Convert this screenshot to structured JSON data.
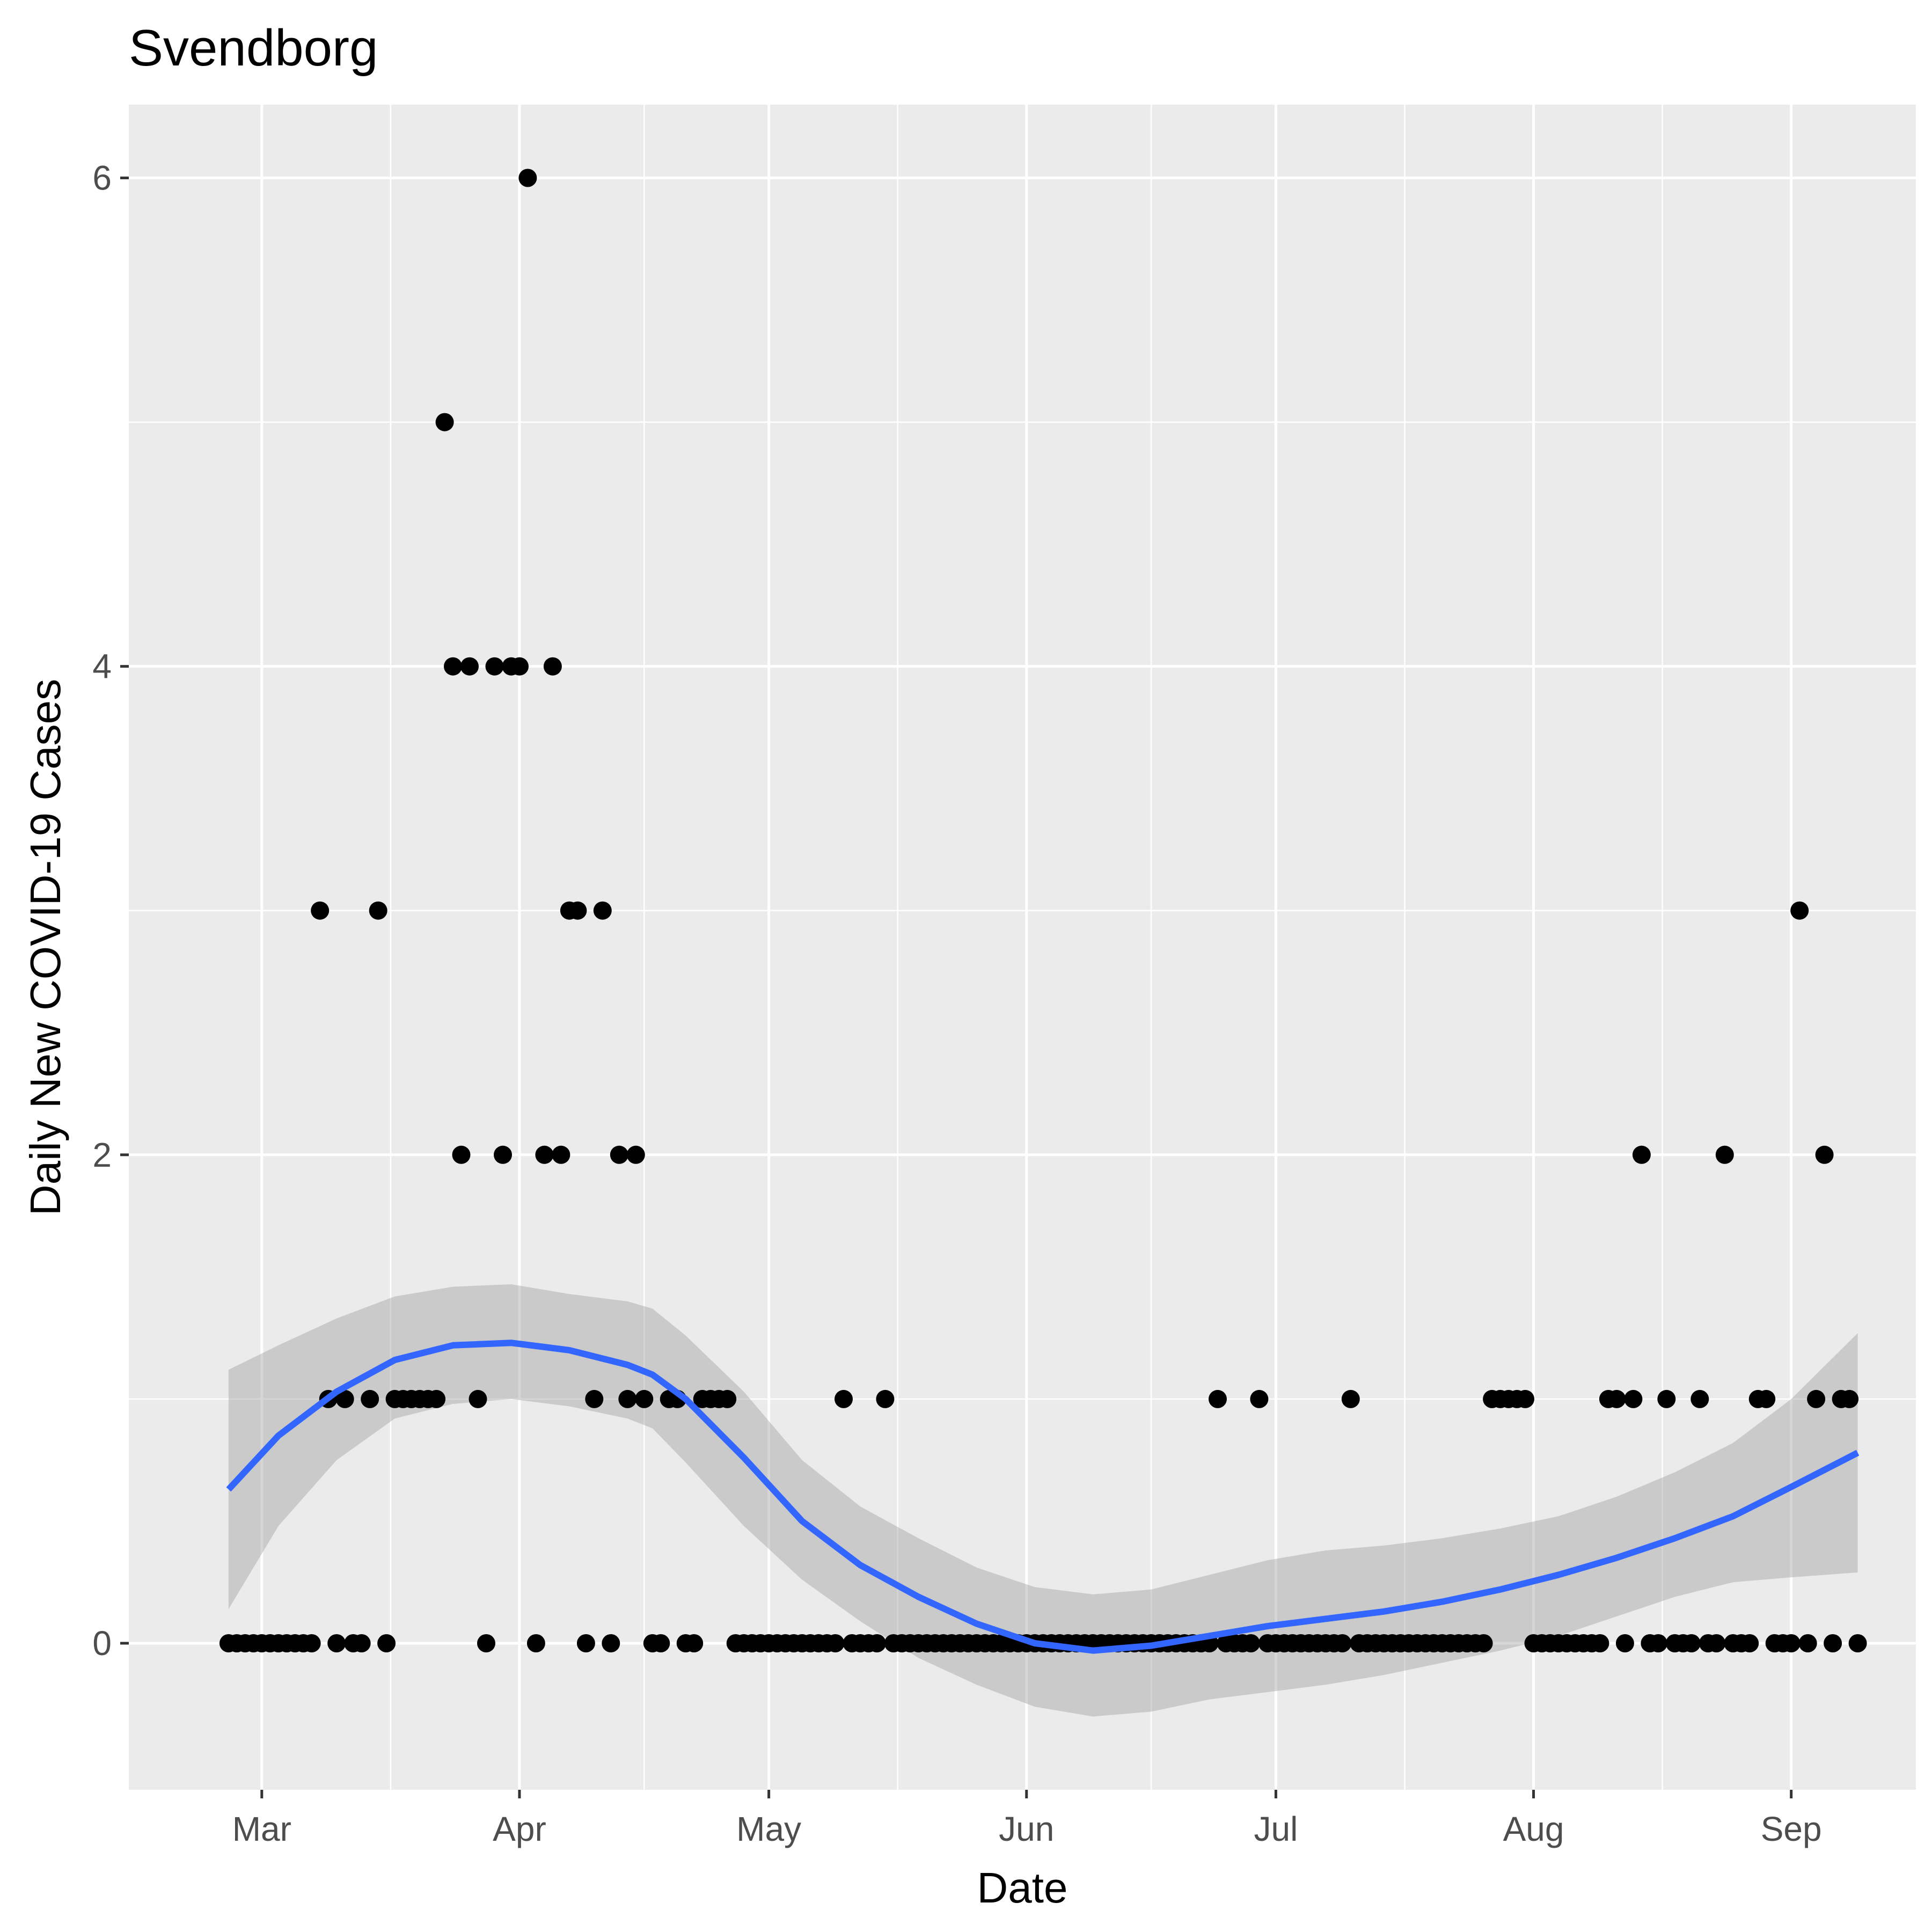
{
  "chart_data": {
    "type": "scatter",
    "title": "Svendborg",
    "xlabel": "Date",
    "ylabel": "Daily New COVID-19 Cases",
    "xlim": [
      "2020-02-14",
      "2020-09-16"
    ],
    "ylim": [
      -0.6,
      6.3
    ],
    "x_ticks": [
      {
        "date": "2020-03-01",
        "label": "Mar"
      },
      {
        "date": "2020-04-01",
        "label": "Apr"
      },
      {
        "date": "2020-05-01",
        "label": "May"
      },
      {
        "date": "2020-06-01",
        "label": "Jun"
      },
      {
        "date": "2020-07-01",
        "label": "Jul"
      },
      {
        "date": "2020-08-01",
        "label": "Aug"
      },
      {
        "date": "2020-09-01",
        "label": "Sep"
      }
    ],
    "y_ticks": [
      0,
      2,
      4,
      6
    ],
    "grid": true,
    "points": [
      [
        "2020-02-26",
        0
      ],
      [
        "2020-02-27",
        0
      ],
      [
        "2020-02-28",
        0
      ],
      [
        "2020-02-29",
        0
      ],
      [
        "2020-03-01",
        0
      ],
      [
        "2020-03-02",
        0
      ],
      [
        "2020-03-03",
        0
      ],
      [
        "2020-03-04",
        0
      ],
      [
        "2020-03-05",
        0
      ],
      [
        "2020-03-06",
        0
      ],
      [
        "2020-03-07",
        0
      ],
      [
        "2020-03-08",
        3
      ],
      [
        "2020-03-09",
        1
      ],
      [
        "2020-03-10",
        0
      ],
      [
        "2020-03-11",
        1
      ],
      [
        "2020-03-12",
        0
      ],
      [
        "2020-03-13",
        0
      ],
      [
        "2020-03-14",
        1
      ],
      [
        "2020-03-15",
        3
      ],
      [
        "2020-03-16",
        0
      ],
      [
        "2020-03-17",
        1
      ],
      [
        "2020-03-18",
        1
      ],
      [
        "2020-03-19",
        1
      ],
      [
        "2020-03-20",
        1
      ],
      [
        "2020-03-21",
        1
      ],
      [
        "2020-03-22",
        1
      ],
      [
        "2020-03-23",
        5
      ],
      [
        "2020-03-24",
        4
      ],
      [
        "2020-03-25",
        2
      ],
      [
        "2020-03-26",
        4
      ],
      [
        "2020-03-27",
        1
      ],
      [
        "2020-03-28",
        0
      ],
      [
        "2020-03-29",
        4
      ],
      [
        "2020-03-30",
        2
      ],
      [
        "2020-03-31",
        4
      ],
      [
        "2020-04-01",
        4
      ],
      [
        "2020-04-02",
        6
      ],
      [
        "2020-04-03",
        0
      ],
      [
        "2020-04-04",
        2
      ],
      [
        "2020-04-05",
        4
      ],
      [
        "2020-04-06",
        2
      ],
      [
        "2020-04-07",
        3
      ],
      [
        "2020-04-08",
        3
      ],
      [
        "2020-04-09",
        0
      ],
      [
        "2020-04-10",
        1
      ],
      [
        "2020-04-11",
        3
      ],
      [
        "2020-04-12",
        0
      ],
      [
        "2020-04-13",
        2
      ],
      [
        "2020-04-14",
        1
      ],
      [
        "2020-04-15",
        2
      ],
      [
        "2020-04-16",
        1
      ],
      [
        "2020-04-17",
        0
      ],
      [
        "2020-04-18",
        0
      ],
      [
        "2020-04-19",
        1
      ],
      [
        "2020-04-20",
        1
      ],
      [
        "2020-04-21",
        0
      ],
      [
        "2020-04-22",
        0
      ],
      [
        "2020-04-23",
        1
      ],
      [
        "2020-04-24",
        1
      ],
      [
        "2020-04-25",
        1
      ],
      [
        "2020-04-26",
        1
      ],
      [
        "2020-04-27",
        0
      ],
      [
        "2020-04-28",
        0
      ],
      [
        "2020-04-29",
        0
      ],
      [
        "2020-04-30",
        0
      ],
      [
        "2020-05-01",
        0
      ],
      [
        "2020-05-02",
        0
      ],
      [
        "2020-05-03",
        0
      ],
      [
        "2020-05-04",
        0
      ],
      [
        "2020-05-05",
        0
      ],
      [
        "2020-05-06",
        0
      ],
      [
        "2020-05-07",
        0
      ],
      [
        "2020-05-08",
        0
      ],
      [
        "2020-05-09",
        0
      ],
      [
        "2020-05-10",
        1
      ],
      [
        "2020-05-11",
        0
      ],
      [
        "2020-05-12",
        0
      ],
      [
        "2020-05-13",
        0
      ],
      [
        "2020-05-14",
        0
      ],
      [
        "2020-05-15",
        1
      ],
      [
        "2020-05-16",
        0
      ],
      [
        "2020-05-17",
        0
      ],
      [
        "2020-05-18",
        0
      ],
      [
        "2020-05-19",
        0
      ],
      [
        "2020-05-20",
        0
      ],
      [
        "2020-05-21",
        0
      ],
      [
        "2020-05-22",
        0
      ],
      [
        "2020-05-23",
        0
      ],
      [
        "2020-05-24",
        0
      ],
      [
        "2020-05-25",
        0
      ],
      [
        "2020-05-26",
        0
      ],
      [
        "2020-05-27",
        0
      ],
      [
        "2020-05-28",
        0
      ],
      [
        "2020-05-29",
        0
      ],
      [
        "2020-05-30",
        0
      ],
      [
        "2020-05-31",
        0
      ],
      [
        "2020-06-01",
        0
      ],
      [
        "2020-06-02",
        0
      ],
      [
        "2020-06-03",
        0
      ],
      [
        "2020-06-04",
        0
      ],
      [
        "2020-06-05",
        0
      ],
      [
        "2020-06-06",
        0
      ],
      [
        "2020-06-07",
        0
      ],
      [
        "2020-06-08",
        0
      ],
      [
        "2020-06-09",
        0
      ],
      [
        "2020-06-10",
        0
      ],
      [
        "2020-06-11",
        0
      ],
      [
        "2020-06-12",
        0
      ],
      [
        "2020-06-13",
        0
      ],
      [
        "2020-06-14",
        0
      ],
      [
        "2020-06-15",
        0
      ],
      [
        "2020-06-16",
        0
      ],
      [
        "2020-06-17",
        0
      ],
      [
        "2020-06-18",
        0
      ],
      [
        "2020-06-19",
        0
      ],
      [
        "2020-06-20",
        0
      ],
      [
        "2020-06-21",
        0
      ],
      [
        "2020-06-22",
        0
      ],
      [
        "2020-06-23",
        0
      ],
      [
        "2020-06-24",
        1
      ],
      [
        "2020-06-25",
        0
      ],
      [
        "2020-06-26",
        0
      ],
      [
        "2020-06-27",
        0
      ],
      [
        "2020-06-28",
        0
      ],
      [
        "2020-06-29",
        1
      ],
      [
        "2020-06-30",
        0
      ],
      [
        "2020-07-01",
        0
      ],
      [
        "2020-07-02",
        0
      ],
      [
        "2020-07-03",
        0
      ],
      [
        "2020-07-04",
        0
      ],
      [
        "2020-07-05",
        0
      ],
      [
        "2020-07-06",
        0
      ],
      [
        "2020-07-07",
        0
      ],
      [
        "2020-07-08",
        0
      ],
      [
        "2020-07-09",
        0
      ],
      [
        "2020-07-10",
        1
      ],
      [
        "2020-07-11",
        0
      ],
      [
        "2020-07-12",
        0
      ],
      [
        "2020-07-13",
        0
      ],
      [
        "2020-07-14",
        0
      ],
      [
        "2020-07-15",
        0
      ],
      [
        "2020-07-16",
        0
      ],
      [
        "2020-07-17",
        0
      ],
      [
        "2020-07-18",
        0
      ],
      [
        "2020-07-19",
        0
      ],
      [
        "2020-07-20",
        0
      ],
      [
        "2020-07-21",
        0
      ],
      [
        "2020-07-22",
        0
      ],
      [
        "2020-07-23",
        0
      ],
      [
        "2020-07-24",
        0
      ],
      [
        "2020-07-25",
        0
      ],
      [
        "2020-07-26",
        0
      ],
      [
        "2020-07-27",
        1
      ],
      [
        "2020-07-28",
        1
      ],
      [
        "2020-07-29",
        1
      ],
      [
        "2020-07-30",
        1
      ],
      [
        "2020-07-31",
        1
      ],
      [
        "2020-08-01",
        0
      ],
      [
        "2020-08-02",
        0
      ],
      [
        "2020-08-03",
        0
      ],
      [
        "2020-08-04",
        0
      ],
      [
        "2020-08-05",
        0
      ],
      [
        "2020-08-06",
        0
      ],
      [
        "2020-08-07",
        0
      ],
      [
        "2020-08-08",
        0
      ],
      [
        "2020-08-09",
        0
      ],
      [
        "2020-08-10",
        1
      ],
      [
        "2020-08-11",
        1
      ],
      [
        "2020-08-12",
        0
      ],
      [
        "2020-08-13",
        1
      ],
      [
        "2020-08-14",
        2
      ],
      [
        "2020-08-15",
        0
      ],
      [
        "2020-08-16",
        0
      ],
      [
        "2020-08-17",
        1
      ],
      [
        "2020-08-18",
        0
      ],
      [
        "2020-08-19",
        0
      ],
      [
        "2020-08-20",
        0
      ],
      [
        "2020-08-21",
        1
      ],
      [
        "2020-08-22",
        0
      ],
      [
        "2020-08-23",
        0
      ],
      [
        "2020-08-24",
        2
      ],
      [
        "2020-08-25",
        0
      ],
      [
        "2020-08-26",
        0
      ],
      [
        "2020-08-27",
        0
      ],
      [
        "2020-08-28",
        1
      ],
      [
        "2020-08-29",
        1
      ],
      [
        "2020-08-30",
        0
      ],
      [
        "2020-08-31",
        0
      ],
      [
        "2020-09-01",
        0
      ],
      [
        "2020-09-02",
        3
      ],
      [
        "2020-09-03",
        0
      ],
      [
        "2020-09-04",
        1
      ],
      [
        "2020-09-05",
        2
      ],
      [
        "2020-09-06",
        0
      ],
      [
        "2020-09-07",
        1
      ],
      [
        "2020-09-08",
        1
      ],
      [
        "2020-09-09",
        0
      ]
    ],
    "smooth": {
      "color": "#3366ff",
      "band_color": "#999999",
      "curve": [
        [
          "2020-02-26",
          0.63,
          0.14,
          1.12
        ],
        [
          "2020-03-03",
          0.85,
          0.48,
          1.22
        ],
        [
          "2020-03-10",
          1.03,
          0.75,
          1.33
        ],
        [
          "2020-03-17",
          1.16,
          0.92,
          1.42
        ],
        [
          "2020-03-24",
          1.22,
          0.98,
          1.46
        ],
        [
          "2020-03-31",
          1.23,
          1.0,
          1.47
        ],
        [
          "2020-04-07",
          1.2,
          0.97,
          1.43
        ],
        [
          "2020-04-14",
          1.14,
          0.92,
          1.4
        ],
        [
          "2020-04-17",
          1.1,
          0.88,
          1.37
        ],
        [
          "2020-04-21",
          1.0,
          0.74,
          1.26
        ],
        [
          "2020-04-28",
          0.76,
          0.48,
          1.03
        ],
        [
          "2020-05-05",
          0.5,
          0.26,
          0.75
        ],
        [
          "2020-05-12",
          0.32,
          0.09,
          0.56
        ],
        [
          "2020-05-19",
          0.19,
          -0.06,
          0.43
        ],
        [
          "2020-05-26",
          0.08,
          -0.17,
          0.31
        ],
        [
          "2020-06-02",
          0.0,
          -0.26,
          0.23
        ],
        [
          "2020-06-09",
          -0.03,
          -0.3,
          0.2
        ],
        [
          "2020-06-16",
          -0.01,
          -0.28,
          0.22
        ],
        [
          "2020-06-23",
          0.03,
          -0.23,
          0.28
        ],
        [
          "2020-06-30",
          0.07,
          -0.2,
          0.34
        ],
        [
          "2020-07-07",
          0.1,
          -0.17,
          0.38
        ],
        [
          "2020-07-14",
          0.13,
          -0.13,
          0.4
        ],
        [
          "2020-07-21",
          0.17,
          -0.08,
          0.43
        ],
        [
          "2020-07-28",
          0.22,
          -0.03,
          0.47
        ],
        [
          "2020-08-04",
          0.28,
          0.03,
          0.52
        ],
        [
          "2020-08-11",
          0.35,
          0.11,
          0.6
        ],
        [
          "2020-08-18",
          0.43,
          0.19,
          0.7
        ],
        [
          "2020-08-25",
          0.52,
          0.25,
          0.82
        ],
        [
          "2020-09-01",
          0.64,
          0.27,
          1.0
        ],
        [
          "2020-09-09",
          0.78,
          0.29,
          1.27
        ]
      ]
    }
  }
}
